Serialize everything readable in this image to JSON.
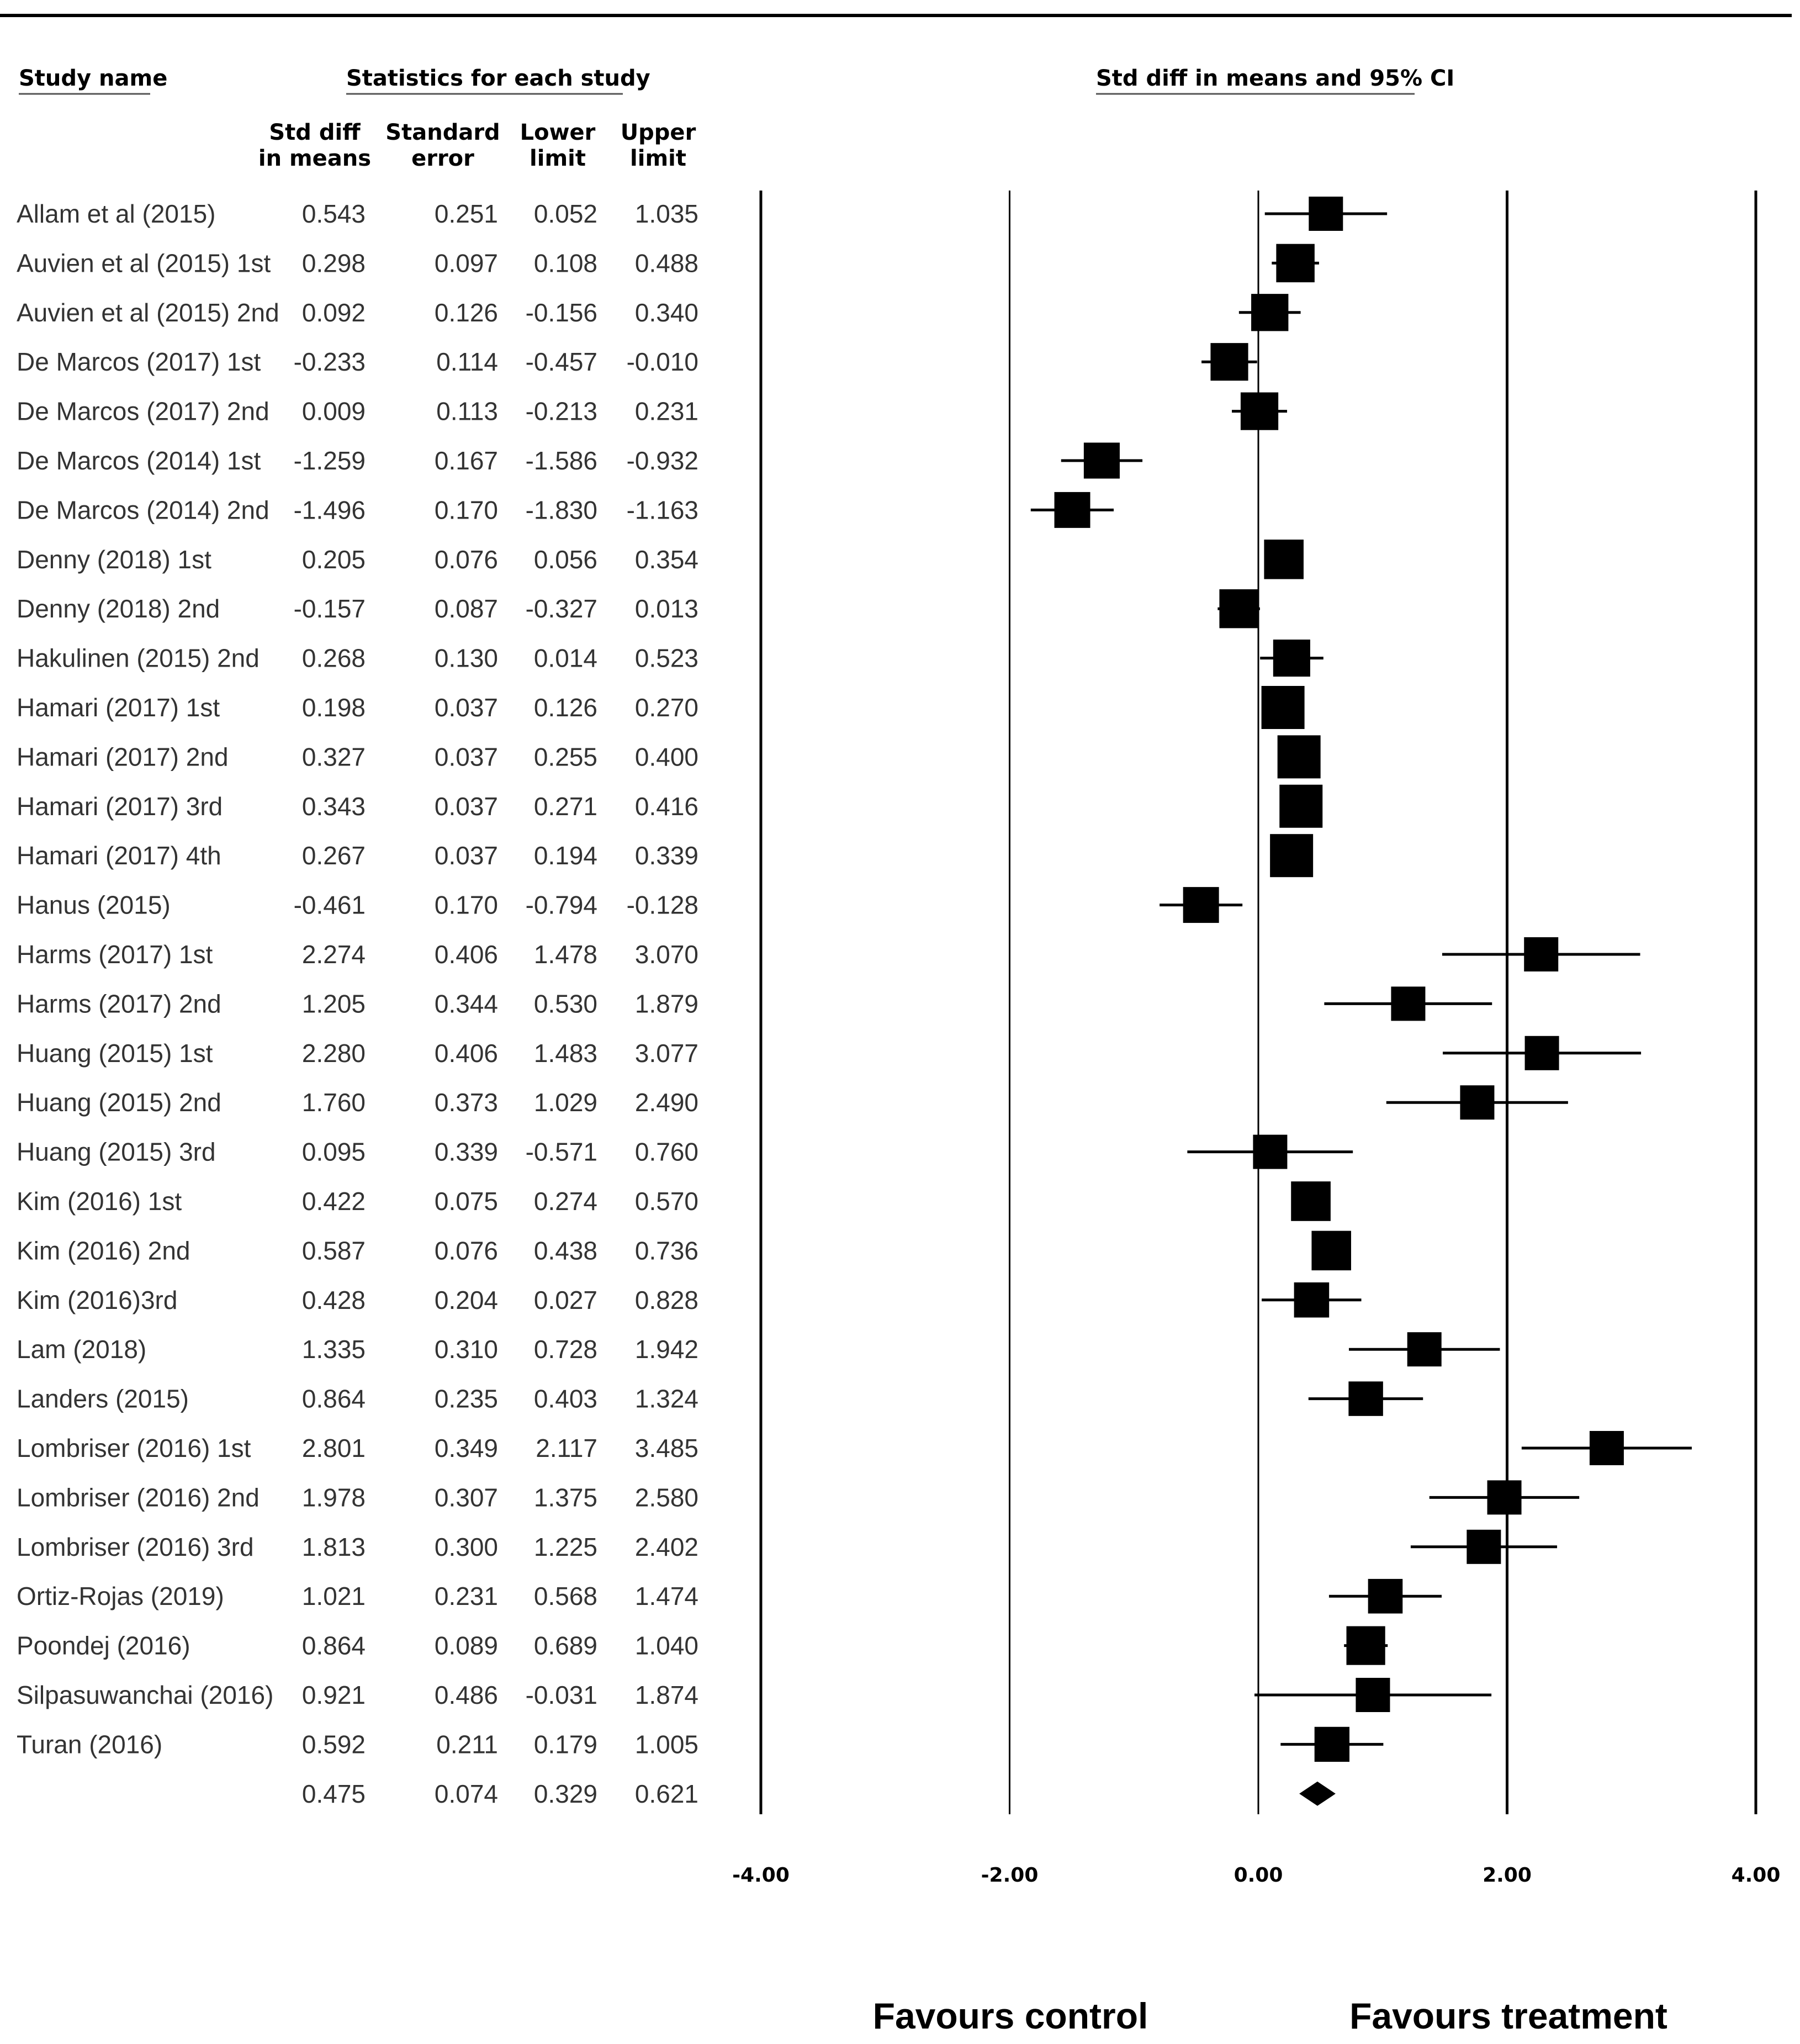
{
  "headers": {
    "study_name": "Study name",
    "statistics": "Statistics for each study",
    "ci_title": "Std diff in means and 95% CI",
    "col_smd_1": "Std diff",
    "col_smd_2": "in means",
    "col_se_1": "Standard",
    "col_se_2": "error",
    "col_lower_1": "Lower",
    "col_lower_2": "limit",
    "col_upper_1": "Upper",
    "col_upper_2": "limit"
  },
  "favours": {
    "left": "Favours control",
    "right": "Favours treatment"
  },
  "chart_data": {
    "type": "forest",
    "title": "Std diff in means and 95% CI",
    "xlim": [
      -4,
      4
    ],
    "ticks": [
      {
        "value": -4,
        "label": "-4.00"
      },
      {
        "value": -2,
        "label": "-2.00"
      },
      {
        "value": 0,
        "label": "0.00"
      },
      {
        "value": 2,
        "label": "2.00"
      },
      {
        "value": 4,
        "label": "4.00"
      }
    ],
    "studies": [
      {
        "name": "Allam et al (2015)",
        "smd": "0.543",
        "se": "0.251",
        "lower": "0.052",
        "upper": "1.035"
      },
      {
        "name": "Auvien et al (2015) 1st",
        "smd": "0.298",
        "se": "0.097",
        "lower": "0.108",
        "upper": "0.488"
      },
      {
        "name": "Auvien et al (2015) 2nd",
        "smd": "0.092",
        "se": "0.126",
        "lower": "-0.156",
        "upper": "0.340"
      },
      {
        "name": "De Marcos (2017) 1st",
        "smd": "-0.233",
        "se": "0.114",
        "lower": "-0.457",
        "upper": "-0.010"
      },
      {
        "name": "De Marcos (2017) 2nd",
        "smd": "0.009",
        "se": "0.113",
        "lower": "-0.213",
        "upper": "0.231"
      },
      {
        "name": "De Marcos (2014) 1st",
        "smd": "-1.259",
        "se": "0.167",
        "lower": "-1.586",
        "upper": "-0.932"
      },
      {
        "name": "De Marcos (2014) 2nd",
        "smd": "-1.496",
        "se": "0.170",
        "lower": "-1.830",
        "upper": "-1.163"
      },
      {
        "name": "Denny (2018) 1st",
        "smd": "0.205",
        "se": "0.076",
        "lower": "0.056",
        "upper": "0.354"
      },
      {
        "name": "Denny (2018) 2nd",
        "smd": "-0.157",
        "se": "0.087",
        "lower": "-0.327",
        "upper": "0.013"
      },
      {
        "name": "Hakulinen (2015) 2nd",
        "smd": "0.268",
        "se": "0.130",
        "lower": "0.014",
        "upper": "0.523"
      },
      {
        "name": "Hamari (2017) 1st",
        "smd": "0.198",
        "se": "0.037",
        "lower": "0.126",
        "upper": "0.270"
      },
      {
        "name": "Hamari (2017) 2nd",
        "smd": "0.327",
        "se": "0.037",
        "lower": "0.255",
        "upper": "0.400"
      },
      {
        "name": "Hamari (2017) 3rd",
        "smd": "0.343",
        "se": "0.037",
        "lower": "0.271",
        "upper": "0.416"
      },
      {
        "name": "Hamari (2017) 4th",
        "smd": "0.267",
        "se": "0.037",
        "lower": "0.194",
        "upper": "0.339"
      },
      {
        "name": "Hanus (2015)",
        "smd": "-0.461",
        "se": "0.170",
        "lower": "-0.794",
        "upper": "-0.128"
      },
      {
        "name": "Harms (2017) 1st",
        "smd": "2.274",
        "se": "0.406",
        "lower": "1.478",
        "upper": "3.070"
      },
      {
        "name": "Harms (2017) 2nd",
        "smd": "1.205",
        "se": "0.344",
        "lower": "0.530",
        "upper": "1.879"
      },
      {
        "name": "Huang (2015) 1st",
        "smd": "2.280",
        "se": "0.406",
        "lower": "1.483",
        "upper": "3.077"
      },
      {
        "name": "Huang (2015) 2nd",
        "smd": "1.760",
        "se": "0.373",
        "lower": "1.029",
        "upper": "2.490"
      },
      {
        "name": "Huang (2015) 3rd",
        "smd": "0.095",
        "se": "0.339",
        "lower": "-0.571",
        "upper": "0.760"
      },
      {
        "name": "Kim (2016) 1st",
        "smd": "0.422",
        "se": "0.075",
        "lower": "0.274",
        "upper": "0.570"
      },
      {
        "name": "Kim (2016) 2nd",
        "smd": "0.587",
        "se": "0.076",
        "lower": "0.438",
        "upper": "0.736"
      },
      {
        "name": "Kim (2016)3rd",
        "smd": "0.428",
        "se": "0.204",
        "lower": "0.027",
        "upper": "0.828"
      },
      {
        "name": "Lam (2018)",
        "smd": "1.335",
        "se": "0.310",
        "lower": "0.728",
        "upper": "1.942"
      },
      {
        "name": "Landers (2015)",
        "smd": "0.864",
        "se": "0.235",
        "lower": "0.403",
        "upper": "1.324"
      },
      {
        "name": "Lombriser (2016) 1st",
        "smd": "2.801",
        "se": "0.349",
        "lower": "2.117",
        "upper": "3.485"
      },
      {
        "name": "Lombriser (2016) 2nd",
        "smd": "1.978",
        "se": "0.307",
        "lower": "1.375",
        "upper": "2.580"
      },
      {
        "name": "Lombriser (2016) 3rd",
        "smd": "1.813",
        "se": "0.300",
        "lower": "1.225",
        "upper": "2.402"
      },
      {
        "name": "Ortiz-Rojas (2019)",
        "smd": "1.021",
        "se": "0.231",
        "lower": "0.568",
        "upper": "1.474"
      },
      {
        "name": "Poondej (2016)",
        "smd": "0.864",
        "se": "0.089",
        "lower": "0.689",
        "upper": "1.040"
      },
      {
        "name": "Silpasuwanchai (2016)",
        "smd": "0.921",
        "se": "0.486",
        "lower": "-0.031",
        "upper": "1.874"
      },
      {
        "name": "Turan (2016)",
        "smd": "0.592",
        "se": "0.211",
        "lower": "0.179",
        "upper": "1.005"
      }
    ],
    "pooled": {
      "smd": "0.475",
      "se": "0.074",
      "lower": "0.329",
      "upper": "0.621"
    }
  }
}
